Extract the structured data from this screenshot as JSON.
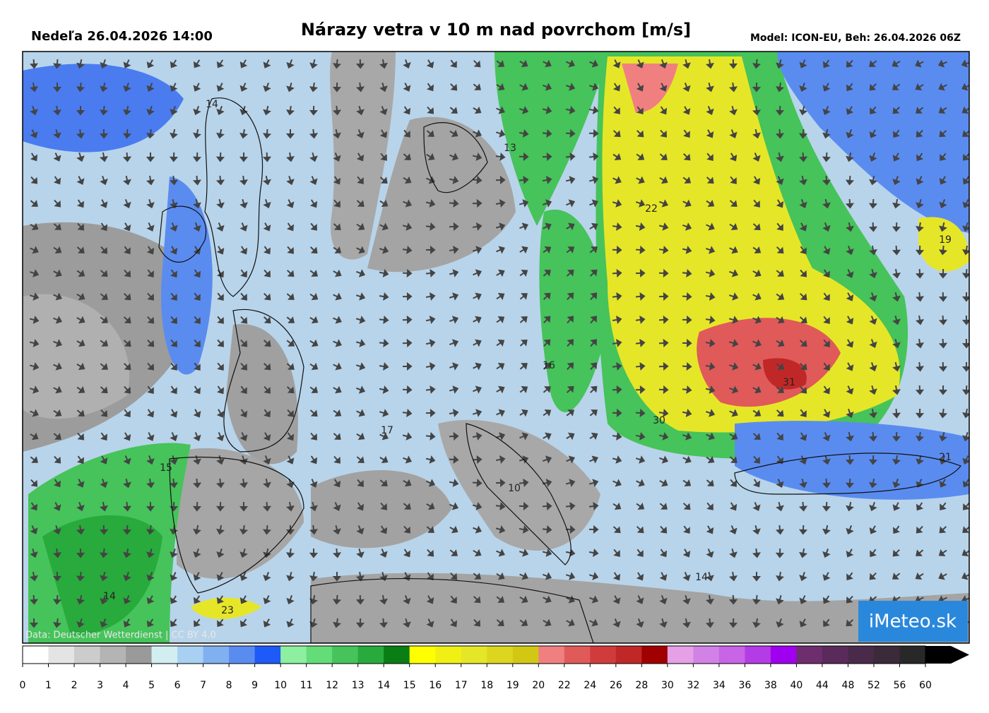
{
  "header": {
    "valid_time": "Nedeľa 26.04.2026 14:00",
    "title": "Nárazy vetra v 10 m nad povrchom [m/s]",
    "model": "Model: ICON-EU, Beh: 26.04.2026 06Z"
  },
  "map": {
    "labels": [
      "14",
      "13",
      "22",
      "19",
      "16",
      "31",
      "17",
      "30",
      "15",
      "10",
      "21",
      "14",
      "14",
      "23"
    ],
    "credit": "Data: Deutscher Wetterdienst | CC BY 4.0",
    "logo": "iMeteo.sk"
  },
  "colorbar": {
    "labels": [
      0,
      1,
      2,
      3,
      4,
      5,
      6,
      7,
      8,
      9,
      10,
      11,
      12,
      13,
      14,
      15,
      16,
      17,
      18,
      19,
      20,
      22,
      24,
      26,
      28,
      30,
      32,
      34,
      36,
      38,
      40,
      44,
      48,
      52,
      56,
      60
    ],
    "colors": [
      "#ffffff",
      "#e4e4e4",
      "#cccccc",
      "#b4b4b4",
      "#9a9a9a",
      "#d2eef0",
      "#a8d0f2",
      "#80b0f0",
      "#5a8cf0",
      "#1e5af8",
      "#8cf0a0",
      "#64dc78",
      "#46c35a",
      "#28aa3c",
      "#0a7d14",
      "#ffff00",
      "#f0f014",
      "#e6e628",
      "#dcd61e",
      "#d2c814",
      "#f08080",
      "#e05a5a",
      "#d03c3c",
      "#c02828",
      "#a00000",
      "#e6a0e6",
      "#d282e6",
      "#c864e6",
      "#b43ce6",
      "#a000f0",
      "#6e2e6e",
      "#5a2a5a",
      "#4a2a4a",
      "#3a2a3a",
      "#282828"
    ],
    "over_color": "#000000"
  }
}
